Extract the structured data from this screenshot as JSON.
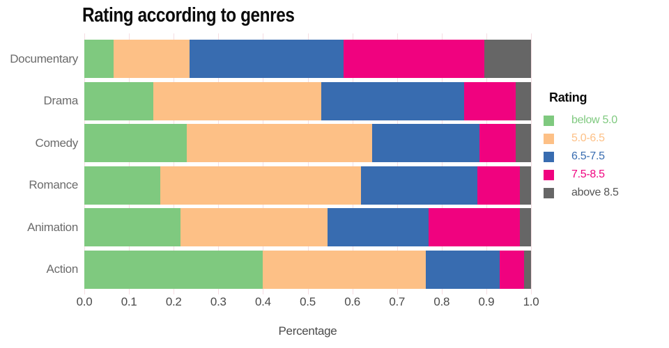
{
  "title": "Rating according to genres",
  "chart_data": {
    "type": "bar",
    "orientation": "horizontal",
    "stacked": true,
    "stack_total": 1.0,
    "title": "Rating according to genres",
    "xlabel": "Percentage",
    "ylabel": "",
    "xlim": [
      0.0,
      1.0
    ],
    "x_ticks": [
      "0.0",
      "0.1",
      "0.2",
      "0.3",
      "0.4",
      "0.5",
      "0.6",
      "0.7",
      "0.8",
      "0.9",
      "1.0"
    ],
    "grid": true,
    "categories": [
      "Documentary",
      "Drama",
      "Comedy",
      "Romance",
      "Animation",
      "Action"
    ],
    "series": [
      {
        "name": "below 5.0",
        "color": "#7fc97f",
        "values": [
          0.065,
          0.155,
          0.23,
          0.17,
          0.215,
          0.4
        ]
      },
      {
        "name": "5.0-6.5",
        "color": "#fdc086",
        "values": [
          0.17,
          0.375,
          0.415,
          0.45,
          0.33,
          0.365
        ]
      },
      {
        "name": "6.5-7.5",
        "color": "#386cb0",
        "values": [
          0.345,
          0.32,
          0.24,
          0.26,
          0.225,
          0.165
        ]
      },
      {
        "name": "7.5-8.5",
        "color": "#f0027f",
        "values": [
          0.315,
          0.115,
          0.08,
          0.095,
          0.205,
          0.055
        ]
      },
      {
        "name": "above 8.5",
        "color": "#666666",
        "values": [
          0.105,
          0.035,
          0.035,
          0.025,
          0.025,
          0.015
        ]
      }
    ],
    "legend": {
      "title": "Rating",
      "position": "right",
      "label_colors": [
        "#7fc97f",
        "#fdc086",
        "#386cb0",
        "#f0027f",
        "#555555"
      ]
    }
  },
  "colors": {
    "background": "#ffffff",
    "grid_line": "#f5dde2",
    "tick_label": "#4a4a4a",
    "genre_label": "#6b6b6b",
    "chart_title": "#0b0b0b"
  }
}
